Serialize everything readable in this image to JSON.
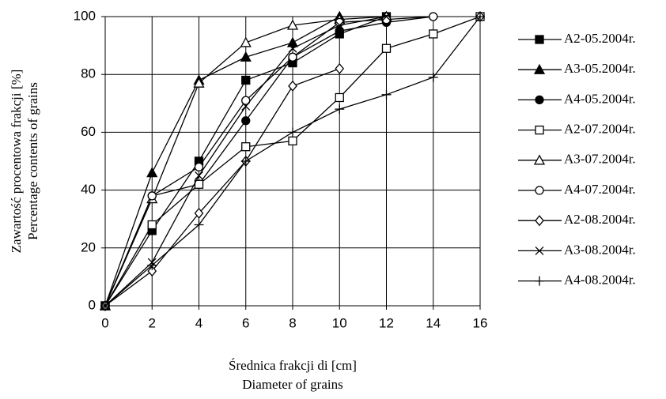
{
  "chart_data": {
    "type": "line",
    "ylabel": [
      "Zawartość procentowa frakcji [%]",
      "Percentage contents of grains"
    ],
    "xlabel": [
      "Średnica frakcji di [cm]",
      "Diameter of grains"
    ],
    "x": [
      0,
      2,
      4,
      6,
      8,
      10,
      12,
      14,
      16
    ],
    "xlim": [
      0,
      16
    ],
    "xticks": [
      0,
      2,
      4,
      6,
      8,
      10,
      12,
      14,
      16
    ],
    "ylim": [
      0,
      100
    ],
    "yticks": [
      0,
      20,
      40,
      60,
      80,
      100
    ],
    "grid": true,
    "legend": "right",
    "color": "#000000",
    "series": [
      {
        "name": "A2-05.2004r.",
        "marker": "square",
        "filled": true,
        "values": [
          0,
          26,
          50,
          78,
          84,
          94,
          100,
          null,
          null
        ]
      },
      {
        "name": "A3-05.2004r.",
        "marker": "triangle",
        "filled": true,
        "values": [
          0,
          46,
          78,
          86,
          91,
          100,
          100,
          null,
          null
        ]
      },
      {
        "name": "A4-05.2004r.",
        "marker": "circle",
        "filled": true,
        "values": [
          0,
          38,
          42,
          64,
          86,
          95,
          98,
          100,
          null
        ]
      },
      {
        "name": "A2-07.2004r.",
        "marker": "square",
        "filled": false,
        "values": [
          0,
          28,
          42,
          55,
          57,
          72,
          89,
          94,
          100
        ]
      },
      {
        "name": "A3-07.2004r.",
        "marker": "triangle",
        "filled": false,
        "values": [
          0,
          37,
          77,
          91,
          97,
          99,
          100,
          null,
          null
        ]
      },
      {
        "name": "A4-07.2004r.",
        "marker": "circle",
        "filled": false,
        "values": [
          0,
          38,
          48,
          71,
          86,
          98,
          99,
          100,
          null
        ]
      },
      {
        "name": "A2-08.2004r.",
        "marker": "diamond",
        "filled": false,
        "values": [
          0,
          12,
          32,
          50,
          76,
          82,
          null,
          null,
          100
        ]
      },
      {
        "name": "A3-08.2004r.",
        "marker": "x",
        "filled": false,
        "values": [
          0,
          15,
          45,
          69,
          89,
          97,
          100,
          null,
          null
        ]
      },
      {
        "name": "A4-08.2004r.",
        "marker": "plus",
        "filled": false,
        "values": [
          0,
          14,
          28,
          50,
          60,
          68,
          73,
          79,
          100
        ]
      }
    ]
  }
}
